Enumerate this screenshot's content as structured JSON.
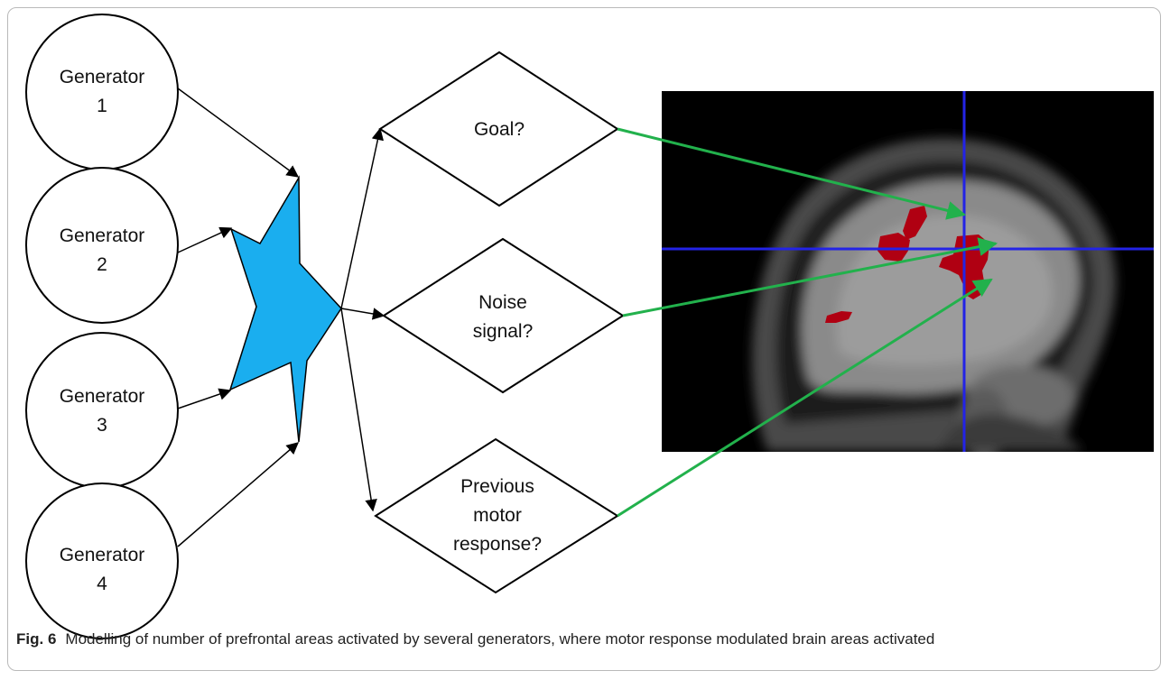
{
  "generators": [
    {
      "line1": "Generator",
      "line2": "1"
    },
    {
      "line1": "Generator",
      "line2": "2"
    },
    {
      "line1": "Generator",
      "line2": "3"
    },
    {
      "line1": "Generator",
      "line2": "4"
    }
  ],
  "decisions": [
    {
      "lines": [
        "Goal?"
      ]
    },
    {
      "lines": [
        "Noise",
        "signal?"
      ]
    },
    {
      "lines": [
        "Previous",
        "motor",
        "response?"
      ]
    }
  ],
  "colors": {
    "star": "#1aaeef",
    "green_arrow": "#22b14c",
    "crosshair": "#2323e6",
    "activation": "#b00012",
    "scan_bg": "#000000"
  },
  "caption": {
    "label": "Fig. 6",
    "text": "Modelling of number of prefrontal areas activated by several generators, where motor response modulated brain areas activated"
  }
}
